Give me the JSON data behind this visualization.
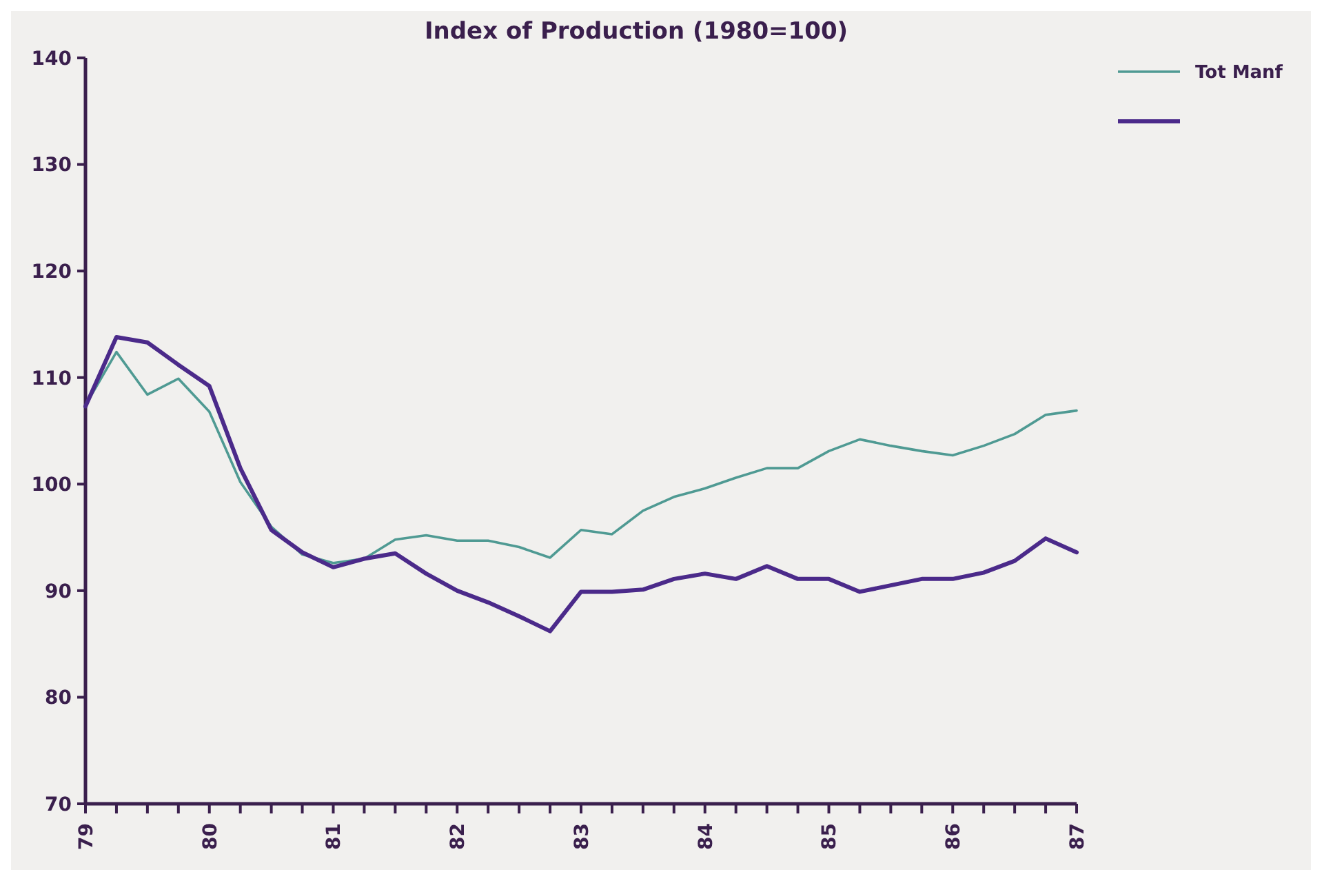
{
  "chart_data": {
    "type": "line",
    "title": "Index of Production (1980=100)",
    "x": [
      79,
      79.25,
      79.5,
      79.75,
      80,
      80.25,
      80.5,
      80.75,
      81,
      81.25,
      81.5,
      81.75,
      82,
      82.25,
      82.5,
      82.75,
      83,
      83.25,
      83.5,
      83.75,
      84,
      84.25,
      84.5,
      84.75,
      85,
      85.25,
      85.5,
      85.75,
      86,
      86.25,
      86.5,
      86.75,
      87
    ],
    "series": [
      {
        "name": "Tot Manf",
        "color": "#4f9a93",
        "values": [
          107.4,
          112.4,
          108.4,
          109.9,
          106.8,
          100.2,
          96,
          93.4,
          92.6,
          93,
          94.8,
          95.2,
          94.7,
          94.7,
          94.1,
          93.1,
          95.7,
          95.3,
          97.5,
          98.8,
          99.6,
          100.6,
          101.5,
          101.5,
          103.1,
          104.2,
          103.6,
          103.1,
          102.7,
          103.6,
          104.7,
          106.5,
          106.9
        ]
      },
      {
        "color": "#4b2a8a",
        "values": [
          107.3,
          113.8,
          113.3,
          111.2,
          109.2,
          101.5,
          95.7,
          93.6,
          92.2,
          93,
          93.5,
          91.6,
          90,
          88.9,
          87.6,
          86.2,
          89.9,
          89.9,
          90.1,
          91.1,
          91.6,
          91.1,
          92.3,
          91.1,
          91.1,
          89.9,
          90.5,
          91.1,
          91.1,
          91.7,
          92.8,
          94.9,
          93.6
        ]
      }
    ],
    "xlim": [
      79,
      87
    ],
    "xticks": [
      79,
      {
        "value": 79.25,
        "label": null
      },
      {
        "value": 79.5,
        "label": null
      },
      {
        "value": 79.75,
        "label": null
      },
      80,
      {
        "value": 80.25,
        "label": null
      },
      {
        "value": 80.5,
        "label": null
      },
      {
        "value": 80.75,
        "label": null
      },
      81,
      {
        "value": 81.25,
        "label": null
      },
      {
        "value": 81.5,
        "label": null
      },
      {
        "value": 81.75,
        "label": null
      },
      82,
      {
        "value": 82.25,
        "label": null
      },
      {
        "value": 82.5,
        "label": null
      },
      {
        "value": 82.75,
        "label": null
      },
      83,
      {
        "value": 83.25,
        "label": null
      },
      {
        "value": 83.5,
        "label": null
      },
      {
        "value": 83.75,
        "label": null
      },
      84,
      {
        "value": 84.25,
        "label": null
      },
      {
        "value": 84.5,
        "label": null
      },
      {
        "value": 84.75,
        "label": null
      },
      85,
      {
        "value": 85.25,
        "label": null
      },
      {
        "value": 85.5,
        "label": null
      },
      {
        "value": 85.75,
        "label": null
      },
      86,
      {
        "value": 86.25,
        "label": null
      },
      {
        "value": 86.5,
        "label": null
      },
      {
        "value": 86.75,
        "label": null
      },
      87
    ],
    "ylim": [
      70,
      140
    ],
    "yticks": [
      70,
      80,
      90,
      100,
      110,
      120,
      130,
      140
    ],
    "grid": false,
    "legend": "top right",
    "marker": "none",
    "line_style": "solid"
  }
}
